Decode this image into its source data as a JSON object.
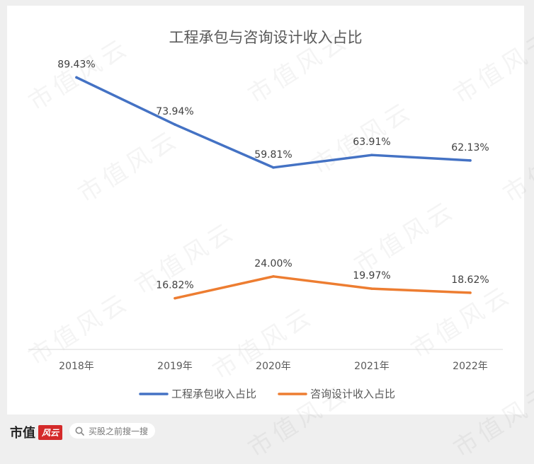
{
  "chart_data": {
    "type": "line",
    "title": "工程承包与咨询设计收入占比",
    "categories": [
      "2018年",
      "2019年",
      "2020年",
      "2021年",
      "2022年"
    ],
    "series": [
      {
        "name": "工程承包收入占比",
        "color": "#4472c4",
        "values": [
          89.43,
          73.94,
          59.81,
          63.91,
          62.13
        ],
        "labels": [
          "89.43%",
          "73.94%",
          "59.81%",
          "63.91%",
          "62.13%"
        ]
      },
      {
        "name": "咨询设计收入占比",
        "color": "#ed7d31",
        "values": [
          null,
          16.82,
          24.0,
          19.97,
          18.62
        ],
        "labels": [
          "",
          "16.82%",
          "24.00%",
          "19.97%",
          "18.62%"
        ]
      }
    ],
    "ylim": [
      0,
      100
    ],
    "grid": false,
    "legend": "bottom"
  },
  "watermark": "市值风云",
  "footer": {
    "brand": "市值",
    "brand_seal": "风云",
    "search_text": "买股之前搜一搜",
    "search_icon": "search-icon"
  }
}
